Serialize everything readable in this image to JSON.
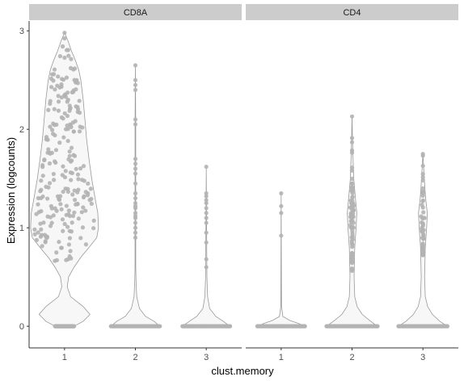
{
  "chart_data": {
    "type": "violin",
    "facet_var": "gene",
    "xlabel": "clust.memory",
    "ylabel": "Expression (logcounts)",
    "ylim": [
      -0.22,
      3.1
    ],
    "yticks": [
      0,
      1,
      2,
      3
    ],
    "grid": false,
    "legend": "none",
    "colors": {
      "strip_fill": "#cccccc",
      "violin_fill": "#f7f7f7",
      "violin_stroke": "#999999",
      "point": "#b3b3b3",
      "axis": "#333333",
      "tick_label": "#4d4d4d"
    },
    "panels": [
      {
        "facet": "CD8A",
        "categories": [
          "1",
          "2",
          "3"
        ],
        "groups": [
          {
            "x": "1",
            "zero_count": 40,
            "max": 2.98,
            "nonzero_range": [
              0.65,
              2.98
            ],
            "nonzero_points": 230,
            "violin_width_profile": [
              [
                0,
                0.28
              ],
              [
                0.05,
                0.55
              ],
              [
                0.12,
                0.75
              ],
              [
                0.2,
                0.55
              ],
              [
                0.3,
                0.18
              ],
              [
                0.4,
                0.08
              ],
              [
                0.5,
                0.12
              ],
              [
                0.6,
                0.28
              ],
              [
                0.7,
                0.48
              ],
              [
                0.8,
                0.72
              ],
              [
                0.9,
                0.95
              ],
              [
                1.0,
                1.0
              ],
              [
                1.15,
                0.98
              ],
              [
                1.3,
                0.9
              ],
              [
                1.5,
                0.8
              ],
              [
                1.7,
                0.72
              ],
              [
                1.9,
                0.65
              ],
              [
                2.1,
                0.6
              ],
              [
                2.3,
                0.55
              ],
              [
                2.5,
                0.48
              ],
              [
                2.6,
                0.42
              ],
              [
                2.7,
                0.32
              ],
              [
                2.8,
                0.2
              ],
              [
                2.9,
                0.1
              ],
              [
                2.98,
                0
              ]
            ]
          },
          {
            "x": "2",
            "zero_count": 40,
            "max": 2.65,
            "nonzero_values": [
              0.9,
              0.95,
              1.0,
              1.05,
              1.1,
              1.12,
              1.15,
              1.2,
              1.22,
              1.25,
              1.3,
              1.35,
              1.45,
              1.55,
              1.6,
              1.65,
              1.7,
              2.05,
              2.1,
              2.4,
              2.45,
              2.5,
              2.65
            ],
            "violin_width_profile": [
              [
                0,
                0.72
              ],
              [
                0.05,
                0.55
              ],
              [
                0.1,
                0.3
              ],
              [
                0.18,
                0.12
              ],
              [
                0.3,
                0.04
              ],
              [
                0.45,
                0.02
              ],
              [
                0.6,
                0.01
              ],
              [
                1.0,
                0.01
              ],
              [
                2.0,
                0.01
              ],
              [
                2.65,
                0
              ]
            ]
          },
          {
            "x": "3",
            "zero_count": 40,
            "max": 1.62,
            "nonzero_values": [
              0.6,
              0.68,
              0.85,
              0.95,
              1.05,
              1.1,
              1.15,
              1.2,
              1.25,
              1.28,
              1.32,
              1.35,
              1.62
            ],
            "violin_width_profile": [
              [
                0,
                0.7
              ],
              [
                0.05,
                0.5
              ],
              [
                0.1,
                0.28
              ],
              [
                0.18,
                0.1
              ],
              [
                0.3,
                0.04
              ],
              [
                0.5,
                0.02
              ],
              [
                1.0,
                0.01
              ],
              [
                1.62,
                0
              ]
            ]
          }
        ]
      },
      {
        "facet": "CD4",
        "categories": [
          "1",
          "2",
          "3"
        ],
        "groups": [
          {
            "x": "1",
            "zero_count": 40,
            "max": 1.35,
            "nonzero_values": [
              0.92,
              1.15,
              1.22,
              1.35
            ],
            "violin_width_profile": [
              [
                0,
                0.7
              ],
              [
                0.03,
                0.5
              ],
              [
                0.06,
                0.25
              ],
              [
                0.1,
                0.05
              ],
              [
                0.2,
                0.01
              ],
              [
                1.35,
                0
              ]
            ]
          },
          {
            "x": "2",
            "zero_count": 40,
            "max": 2.13,
            "nonzero_range": [
              0.55,
              2.13
            ],
            "nonzero_points": 80,
            "nonzero_center": 1.15,
            "violin_width_profile": [
              [
                0,
                0.75
              ],
              [
                0.05,
                0.55
              ],
              [
                0.12,
                0.3
              ],
              [
                0.2,
                0.15
              ],
              [
                0.3,
                0.08
              ],
              [
                0.5,
                0.06
              ],
              [
                0.8,
                0.08
              ],
              [
                1.0,
                0.12
              ],
              [
                1.15,
                0.14
              ],
              [
                1.3,
                0.1
              ],
              [
                1.5,
                0.05
              ],
              [
                1.8,
                0.02
              ],
              [
                2.13,
                0
              ]
            ]
          },
          {
            "x": "3",
            "zero_count": 40,
            "max": 1.75,
            "nonzero_range": [
              0.6,
              1.75
            ],
            "nonzero_points": 45,
            "nonzero_center": 1.15,
            "violin_width_profile": [
              [
                0,
                0.72
              ],
              [
                0.05,
                0.5
              ],
              [
                0.12,
                0.28
              ],
              [
                0.2,
                0.14
              ],
              [
                0.3,
                0.07
              ],
              [
                0.5,
                0.05
              ],
              [
                0.8,
                0.07
              ],
              [
                1.0,
                0.11
              ],
              [
                1.15,
                0.13
              ],
              [
                1.3,
                0.08
              ],
              [
                1.5,
                0.04
              ],
              [
                1.75,
                0
              ]
            ]
          }
        ]
      }
    ]
  }
}
